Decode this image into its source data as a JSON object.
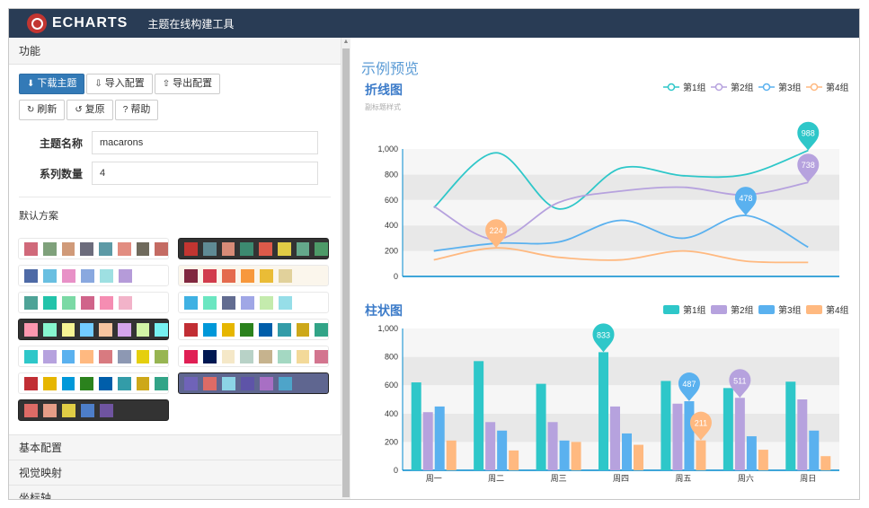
{
  "app": {
    "logo_text": "ECHARTS",
    "subtitle": "主题在线构建工具"
  },
  "sidebar": {
    "section_title": "功能",
    "buttons_row1": [
      {
        "label": "下载主题",
        "icon": "download-icon"
      },
      {
        "label": "导入配置",
        "icon": "import-icon"
      },
      {
        "label": "导出配置",
        "icon": "export-icon"
      }
    ],
    "buttons_row2": [
      {
        "label": "刷新",
        "icon": "refresh-icon"
      },
      {
        "label": "复原",
        "icon": "reset-icon"
      },
      {
        "label": "帮助",
        "icon": "help-icon"
      }
    ],
    "theme_name_label": "主题名称",
    "theme_name_value": "macarons",
    "series_count_label": "系列数量",
    "series_count_value": "4",
    "schemes_title": "默认方案",
    "schemes": [
      {
        "dark": false,
        "colors": [
          "#c1232b",
          "#27727b",
          "#fcce10",
          "#e87c25",
          "#b5c334",
          "#fe8463",
          "#9bca63",
          "#fad860"
        ],
        "alt": [
          "#d0697a",
          "#7fa17b",
          "#d09a79",
          "#6c6c7c",
          "#5d9aa6",
          "#e28d81",
          "#6f6a5c",
          "#c46b63"
        ]
      },
      {
        "dark": true,
        "colors": [
          "#c23531",
          "#5f8a94",
          "#d88b77",
          "#3c8a70",
          "#dd5a4a",
          "#e0cc45",
          "#64a88b",
          "#4d9a68"
        ]
      },
      {
        "dark": false,
        "colors": [
          "#4e6aa6",
          "#69bfe1",
          "#e891c7",
          "#89a8df",
          "#9ee0e2",
          "#b59bd9"
        ]
      },
      {
        "dark": false,
        "bg": "#fbf6ec",
        "colors": [
          "#81283f",
          "#d13c4b",
          "#e46b4d",
          "#f7983c",
          "#eabc36",
          "#e1d19b"
        ]
      },
      {
        "dark": false,
        "colors": [
          "#4ea397",
          "#22c3aa",
          "#7bd9a5",
          "#d0648a",
          "#f58db2",
          "#f2b3c9"
        ]
      },
      {
        "dark": false,
        "colors": [
          "#3fb1e3",
          "#6be6c1",
          "#626c91",
          "#a0a7e6",
          "#c4ebad",
          "#96dee8"
        ]
      },
      {
        "dark": true,
        "colors": [
          "#fc97af",
          "#87f7cf",
          "#f7f494",
          "#72ccff",
          "#f7c5a0",
          "#d4a4eb",
          "#d2f5a6",
          "#76f2f2"
        ]
      },
      {
        "dark": false,
        "colors": [
          "#c12e34",
          "#0098d9",
          "#e6b600",
          "#2b821d",
          "#005eaa",
          "#339ca8",
          "#cda819",
          "#32a487"
        ]
      },
      {
        "dark": false,
        "colors": [
          "#2ec7c9",
          "#b6a2de",
          "#5ab1ef",
          "#ffb980",
          "#d87a80",
          "#8d98b3",
          "#e5cf0d",
          "#97b552"
        ]
      },
      {
        "dark": false,
        "colors": [
          "#e01f54",
          "#001852",
          "#f5e8c8",
          "#b8d2c7",
          "#c6b38e",
          "#a4d8c2",
          "#f3d999",
          "#d3758f"
        ]
      },
      {
        "dark": false,
        "colors": [
          "#c12e34",
          "#e6b600",
          "#0098d9",
          "#2b821d",
          "#005eaa",
          "#339ca8",
          "#cda819",
          "#32a487"
        ]
      },
      {
        "dark": true,
        "bg": "#5f6690",
        "colors": [
          "#6f63b8",
          "#dd6b66",
          "#8cd4e6",
          "#5e54a8",
          "#a86fc4",
          "#4ea4c9"
        ]
      },
      {
        "dark": true,
        "colors": [
          "#dd6b66",
          "#e69d87",
          "#e0cc45",
          "#4d7ec9",
          "#6f54a0"
        ]
      }
    ],
    "footer_items": [
      "基本配置",
      "视觉映射",
      "坐标轴"
    ]
  },
  "main": {
    "title": "示例预览"
  },
  "colors": {
    "s1": "#2ec7c9",
    "s2": "#b6a2de",
    "s3": "#5ab1ef",
    "s4": "#ffb980"
  },
  "chart_data": [
    {
      "type": "line",
      "title": "折线图",
      "subtitle": "副标题样式",
      "categories": [
        "周一",
        "周二",
        "周三",
        "周四",
        "周五",
        "周六",
        "周日"
      ],
      "series": [
        {
          "name": "第1组",
          "values": [
            540,
            970,
            530,
            850,
            790,
            800,
            988
          ]
        },
        {
          "name": "第2组",
          "values": [
            550,
            290,
            580,
            670,
            700,
            640,
            738
          ]
        },
        {
          "name": "第3组",
          "values": [
            200,
            260,
            270,
            440,
            300,
            478,
            230
          ]
        },
        {
          "name": "第4组",
          "values": [
            130,
            224,
            150,
            130,
            200,
            120,
            110
          ]
        }
      ],
      "ylim": [
        0,
        1000
      ],
      "yticks": [
        "0",
        "200",
        "400",
        "600",
        "800",
        "1,000"
      ],
      "markers": [
        {
          "series": 0,
          "index": 6,
          "label": "988"
        },
        {
          "series": 1,
          "index": 6,
          "label": "738"
        },
        {
          "series": 2,
          "index": 5,
          "label": "478"
        },
        {
          "series": 3,
          "index": 1,
          "label": "224"
        }
      ],
      "legend": "top-right",
      "grid": "banded"
    },
    {
      "type": "bar",
      "title": "柱状图",
      "categories": [
        "周一",
        "周二",
        "周三",
        "周四",
        "周五",
        "周六",
        "周日"
      ],
      "series": [
        {
          "name": "第1组",
          "values": [
            620,
            770,
            610,
            833,
            630,
            580,
            625
          ]
        },
        {
          "name": "第2组",
          "values": [
            410,
            340,
            340,
            450,
            470,
            511,
            500
          ]
        },
        {
          "name": "第3组",
          "values": [
            450,
            280,
            210,
            260,
            487,
            240,
            280
          ]
        },
        {
          "name": "第4组",
          "values": [
            210,
            140,
            200,
            180,
            211,
            145,
            100
          ]
        }
      ],
      "ylim": [
        0,
        1000
      ],
      "yticks": [
        "0",
        "200",
        "400",
        "600",
        "800",
        "1,000"
      ],
      "markers": [
        {
          "series": 0,
          "index": 3,
          "label": "833"
        },
        {
          "series": 1,
          "index": 5,
          "label": "511"
        },
        {
          "series": 2,
          "index": 4,
          "label": "487"
        },
        {
          "series": 3,
          "index": 4,
          "label": "211"
        }
      ],
      "legend": "top-right",
      "grid": "banded"
    }
  ]
}
